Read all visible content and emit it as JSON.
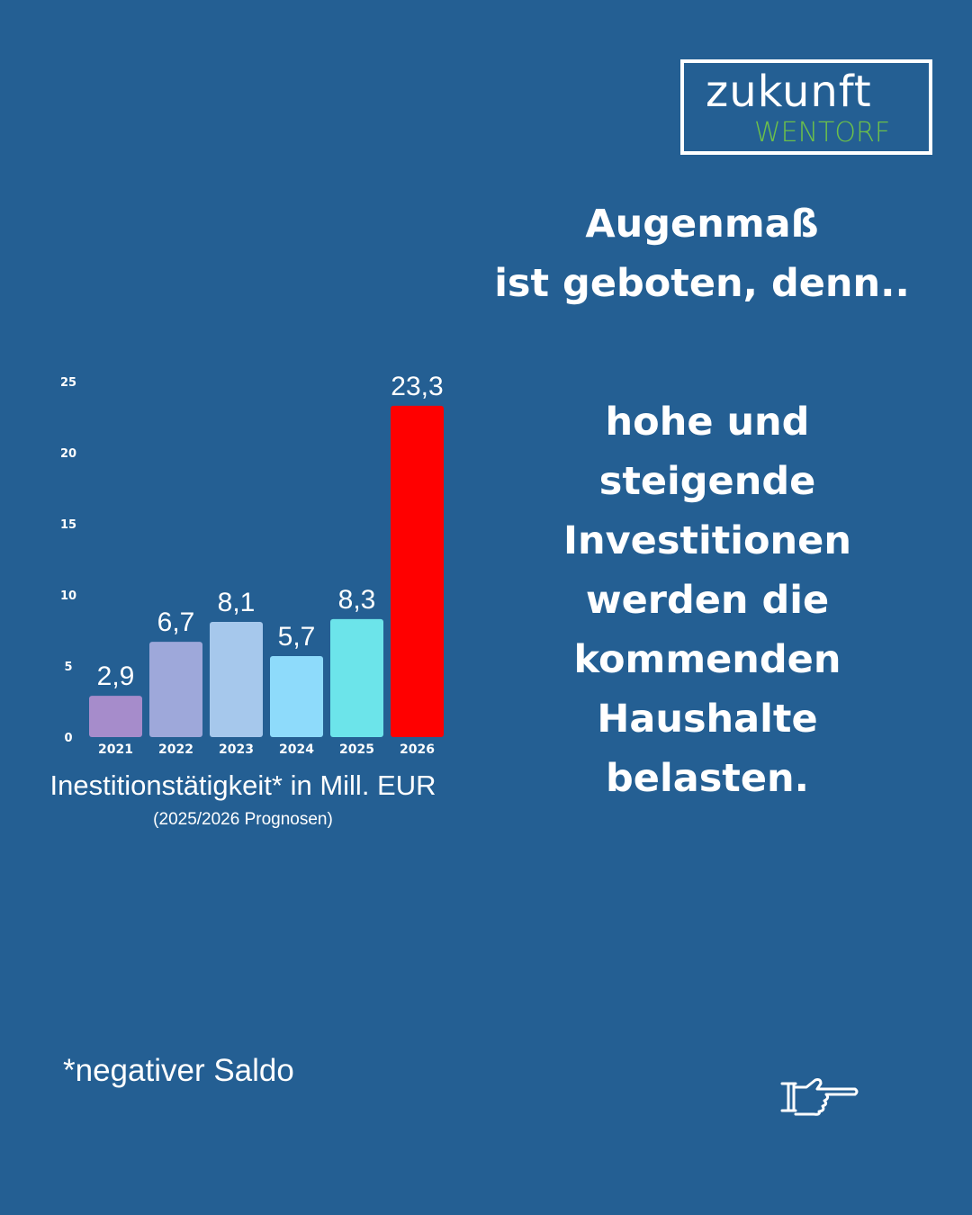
{
  "logo": {
    "line1": "zukunft",
    "line2": "WENTORF",
    "brand_green": "#6cc04a"
  },
  "headline": {
    "line1": "Augenmaß",
    "line2": "ist geboten, denn..",
    "body": [
      "hohe und",
      "steigende",
      "Investitionen",
      "werden die",
      "kommenden",
      "Haushalte",
      "belasten."
    ]
  },
  "chart_data": {
    "type": "bar",
    "categories": [
      "2021",
      "2022",
      "2023",
      "2024",
      "2025",
      "2026"
    ],
    "values": [
      2.9,
      6.7,
      8.1,
      5.7,
      8.3,
      23.3
    ],
    "value_labels": [
      "2,9",
      "6,7",
      "8,1",
      "5,7",
      "8,3",
      "23,3"
    ],
    "colors": [
      "#a68ccb",
      "#9ea8da",
      "#a6c8ec",
      "#8edbfb",
      "#6ce4ea",
      "#ff0000"
    ],
    "yticks": [
      0,
      5,
      10,
      15,
      20,
      25
    ],
    "ylim": [
      0,
      25
    ],
    "title": "Inestitionstätigkeit* in Mill. EUR",
    "subtitle": "(2025/2026 Prognosen)",
    "grid": false
  },
  "footnote": "*negativer Saldo",
  "icons": {
    "next": "pointing-hand-icon"
  }
}
